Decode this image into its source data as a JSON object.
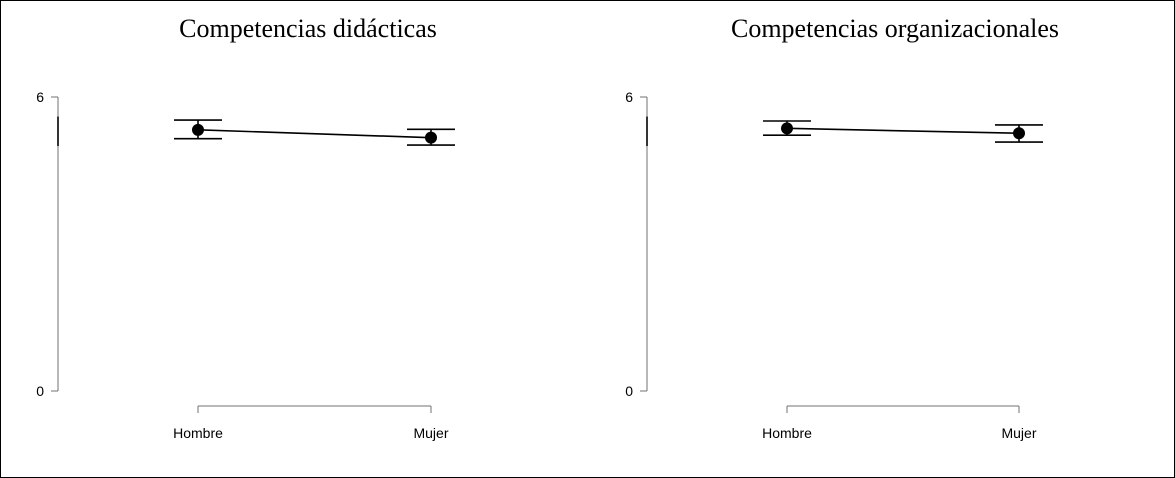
{
  "chart_data": [
    {
      "type": "line",
      "title": "Competencias didácticas",
      "categories": [
        "Hombre",
        "Mujer"
      ],
      "y_ticks": [
        "0",
        "6"
      ],
      "ylim": [
        0,
        6
      ],
      "values": [
        5.33,
        5.17
      ],
      "ci_lower": [
        5.15,
        5.02
      ],
      "ci_upper": [
        5.53,
        5.34
      ],
      "y_extent": [
        5.0,
        5.6
      ]
    },
    {
      "type": "line",
      "title": "Competencias organizacionales",
      "categories": [
        "Hombre",
        "Mujer"
      ],
      "y_ticks": [
        "0",
        "6"
      ],
      "ylim": [
        0,
        6
      ],
      "values": [
        5.36,
        5.26
      ],
      "ci_lower": [
        5.22,
        5.08
      ],
      "ci_upper": [
        5.51,
        5.43
      ],
      "y_extent": [
        5.0,
        5.6
      ]
    }
  ]
}
